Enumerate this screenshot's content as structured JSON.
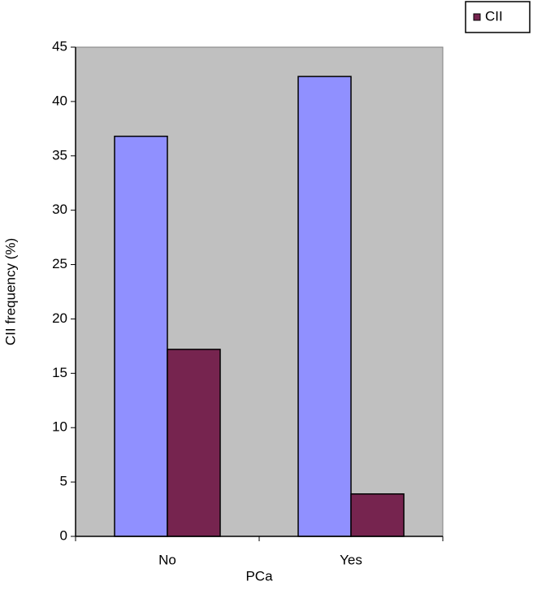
{
  "chart_data": {
    "type": "bar",
    "x_label": "PCa",
    "y_label": "CII frequency (%)",
    "categories": [
      "No",
      "Yes"
    ],
    "series": [
      {
        "color": "#9090ff",
        "values": [
          36.8,
          42.3
        ]
      },
      {
        "name": "CII",
        "color": "#76244f",
        "values": [
          17.2,
          3.9
        ]
      }
    ],
    "ylim": [
      0,
      45
    ],
    "yticks": [
      0,
      5,
      10,
      15,
      20,
      25,
      30,
      35,
      40,
      45
    ],
    "grid": false,
    "legend": "top-right",
    "plot_background": "#c0c0c0"
  }
}
